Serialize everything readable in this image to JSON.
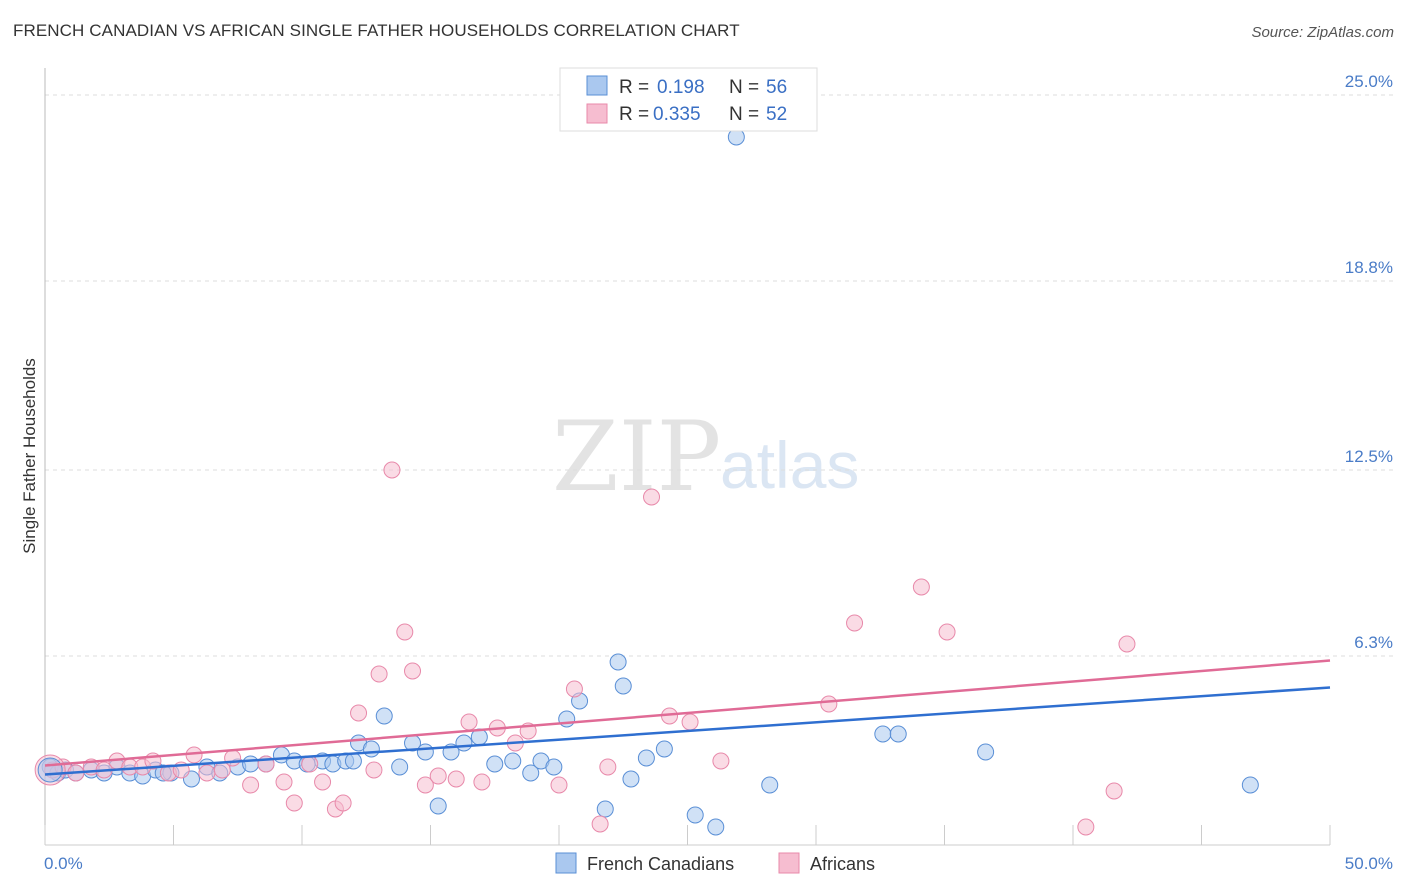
{
  "header": {
    "title": "FRENCH CANADIAN VS AFRICAN SINGLE FATHER HOUSEHOLDS CORRELATION CHART",
    "source": "Source: ZipAtlas.com"
  },
  "watermark": {
    "zip": "ZIP",
    "atlas": "atlas"
  },
  "legend": {
    "rows": [
      {
        "r_label": "R =",
        "r_value": "0.198",
        "n_label": "N =",
        "n_value": "56"
      },
      {
        "r_label": "R =",
        "r_value": "0.335",
        "n_label": "N =",
        "n_value": "52"
      }
    ]
  },
  "bottom_legend": {
    "items": [
      "French Canadians",
      "Africans"
    ]
  },
  "colors": {
    "blue_fill": "#aac8ef",
    "blue_stroke": "#5a8fd6",
    "blue_line": "#2f6fd0",
    "pink_fill": "#f6bdd0",
    "pink_stroke": "#e889aa",
    "pink_line": "#e06b96",
    "grid": "#dddddd",
    "axis_text": "#4a7cc7"
  },
  "chart_data": {
    "type": "scatter",
    "title": "FRENCH CANADIAN VS AFRICAN SINGLE FATHER HOUSEHOLDS CORRELATION CHART",
    "xlabel": "",
    "ylabel": "Single Father Households",
    "xlim": [
      0,
      50
    ],
    "ylim": [
      0,
      25.9
    ],
    "y_ticks": [
      6.3,
      12.5,
      18.8,
      25.0
    ],
    "y_tick_labels": [
      "6.3%",
      "12.5%",
      "18.8%",
      "25.0%"
    ],
    "x_tick_labels": [
      "0.0%",
      "50.0%"
    ],
    "grid": true,
    "series": [
      {
        "name": "French Canadians",
        "R": 0.198,
        "N": 56,
        "trend": {
          "x": [
            0,
            50
          ],
          "y": [
            2.35,
            5.25
          ]
        },
        "points": [
          [
            0.2,
            2.6
          ],
          [
            0.5,
            2.4
          ],
          [
            0.8,
            2.5
          ],
          [
            1.2,
            2.4
          ],
          [
            1.8,
            2.5
          ],
          [
            2.3,
            2.4
          ],
          [
            2.8,
            2.6
          ],
          [
            3.3,
            2.4
          ],
          [
            3.8,
            2.3
          ],
          [
            4.3,
            2.5
          ],
          [
            4.9,
            2.4
          ],
          [
            5.7,
            2.2
          ],
          [
            6.3,
            2.6
          ],
          [
            6.8,
            2.4
          ],
          [
            7.5,
            2.6
          ],
          [
            8.0,
            2.7
          ],
          [
            8.6,
            2.7
          ],
          [
            9.2,
            3.0
          ],
          [
            9.7,
            2.8
          ],
          [
            10.2,
            2.7
          ],
          [
            10.8,
            2.8
          ],
          [
            11.2,
            2.7
          ],
          [
            11.7,
            2.8
          ],
          [
            12.2,
            3.4
          ],
          [
            12.7,
            3.2
          ],
          [
            13.2,
            4.3
          ],
          [
            13.8,
            2.6
          ],
          [
            14.3,
            3.4
          ],
          [
            14.8,
            3.1
          ],
          [
            15.3,
            1.3
          ],
          [
            15.8,
            3.1
          ],
          [
            16.3,
            3.4
          ],
          [
            16.9,
            3.6
          ],
          [
            17.5,
            2.7
          ],
          [
            18.2,
            2.8
          ],
          [
            18.9,
            2.4
          ],
          [
            19.3,
            2.8
          ],
          [
            19.8,
            2.6
          ],
          [
            20.3,
            4.2
          ],
          [
            20.8,
            4.8
          ],
          [
            21.8,
            1.2
          ],
          [
            22.3,
            6.1
          ],
          [
            22.5,
            5.3
          ],
          [
            22.8,
            2.2
          ],
          [
            23.4,
            2.9
          ],
          [
            24.1,
            3.2
          ],
          [
            25.3,
            1.0
          ],
          [
            26.1,
            0.6
          ],
          [
            26.9,
            23.6
          ],
          [
            28.2,
            2.0
          ],
          [
            32.6,
            3.7
          ],
          [
            33.2,
            3.7
          ],
          [
            36.6,
            3.1
          ],
          [
            46.9,
            2.0
          ],
          [
            12.0,
            2.8
          ],
          [
            4.6,
            2.4
          ]
        ]
      },
      {
        "name": "Africans",
        "R": 0.335,
        "N": 52,
        "trend": {
          "x": [
            0,
            50
          ],
          "y": [
            2.65,
            6.15
          ]
        },
        "points": [
          [
            0.3,
            2.5
          ],
          [
            0.7,
            2.6
          ],
          [
            1.2,
            2.4
          ],
          [
            1.8,
            2.6
          ],
          [
            2.3,
            2.5
          ],
          [
            2.8,
            2.8
          ],
          [
            3.3,
            2.6
          ],
          [
            3.8,
            2.6
          ],
          [
            4.2,
            2.8
          ],
          [
            4.8,
            2.4
          ],
          [
            5.3,
            2.5
          ],
          [
            5.8,
            3.0
          ],
          [
            6.3,
            2.4
          ],
          [
            6.9,
            2.5
          ],
          [
            7.3,
            2.9
          ],
          [
            8.0,
            2.0
          ],
          [
            8.6,
            2.7
          ],
          [
            9.3,
            2.1
          ],
          [
            9.7,
            1.4
          ],
          [
            10.3,
            2.7
          ],
          [
            10.8,
            2.1
          ],
          [
            11.3,
            1.2
          ],
          [
            11.6,
            1.4
          ],
          [
            12.2,
            4.4
          ],
          [
            13.0,
            5.7
          ],
          [
            13.5,
            12.5
          ],
          [
            14.0,
            7.1
          ],
          [
            14.3,
            5.8
          ],
          [
            14.8,
            2.0
          ],
          [
            15.3,
            2.3
          ],
          [
            16.0,
            2.2
          ],
          [
            16.5,
            4.1
          ],
          [
            17.0,
            2.1
          ],
          [
            17.6,
            3.9
          ],
          [
            18.3,
            3.4
          ],
          [
            18.8,
            3.8
          ],
          [
            20.0,
            2.0
          ],
          [
            20.6,
            5.2
          ],
          [
            21.6,
            0.7
          ],
          [
            21.9,
            2.6
          ],
          [
            23.6,
            11.6
          ],
          [
            24.3,
            4.3
          ],
          [
            25.1,
            4.1
          ],
          [
            26.3,
            2.8
          ],
          [
            30.5,
            4.7
          ],
          [
            31.5,
            7.4
          ],
          [
            34.1,
            8.6
          ],
          [
            35.1,
            7.1
          ],
          [
            40.5,
            0.6
          ],
          [
            41.6,
            1.8
          ],
          [
            42.1,
            6.7
          ],
          [
            12.8,
            2.5
          ]
        ]
      }
    ]
  }
}
